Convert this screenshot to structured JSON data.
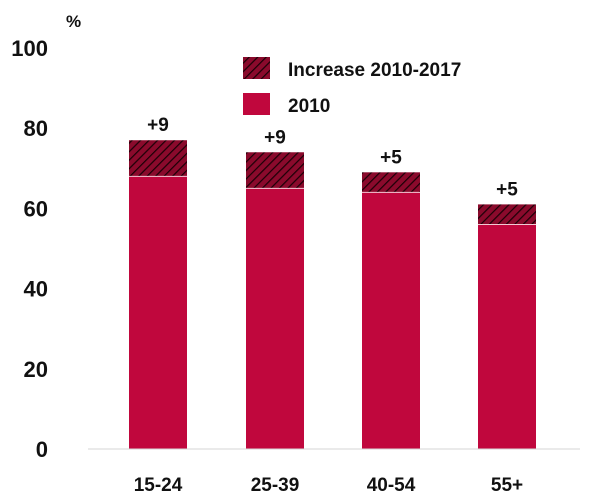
{
  "chart_data": {
    "type": "bar",
    "stacked": true,
    "categories": [
      "15-24",
      "25-39",
      "40-54",
      "55+"
    ],
    "series": [
      {
        "name": "2010",
        "values": [
          68,
          65,
          64,
          56
        ],
        "color": "#c0073d",
        "pattern": "solid"
      },
      {
        "name": "Increase 2010-2017",
        "values": [
          9,
          9,
          5,
          5
        ],
        "color": "#8a0a2c",
        "pattern": "hatched"
      }
    ],
    "data_labels": [
      "+9",
      "+9",
      "+5",
      "+5"
    ],
    "ylabel": "%",
    "ylim": [
      0,
      100
    ],
    "yticks": [
      0,
      20,
      40,
      60,
      80,
      100
    ],
    "grid": false,
    "legend_position": "top-right",
    "legend_order": [
      "Increase 2010-2017",
      "2010"
    ]
  }
}
